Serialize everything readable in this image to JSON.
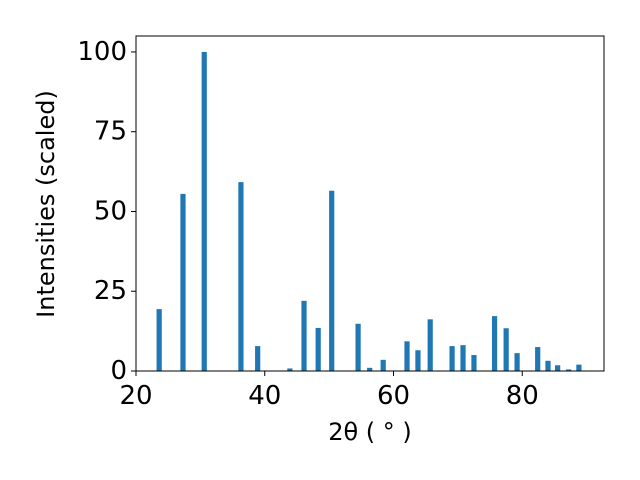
{
  "chart_data": {
    "type": "bar",
    "x_label": "2θ ( ° )",
    "y_label": "Intensities (scaled)",
    "x": [
      23.6,
      27.3,
      30.6,
      36.3,
      38.9,
      43.9,
      46.1,
      48.3,
      50.4,
      54.5,
      56.3,
      58.4,
      62.1,
      63.8,
      65.7,
      69.1,
      70.8,
      72.5,
      75.7,
      77.5,
      79.2,
      82.4,
      84.0,
      85.5,
      87.2,
      88.8
    ],
    "values": [
      19.4,
      55.5,
      100,
      59.2,
      7.8,
      0.8,
      22,
      13.5,
      56.5,
      14.8,
      1,
      3.5,
      9.3,
      6.5,
      16.2,
      7.8,
      8.1,
      5,
      17.2,
      13.4,
      5.6,
      7.5,
      3.2,
      1.8,
      0.5,
      2
    ],
    "color": "#1f77b4",
    "xlim": [
      20,
      92.7
    ],
    "xticks": [
      20,
      40,
      60,
      80
    ],
    "ylim": [
      0,
      105
    ],
    "yticks": [
      0,
      25,
      50,
      75,
      100
    ]
  }
}
